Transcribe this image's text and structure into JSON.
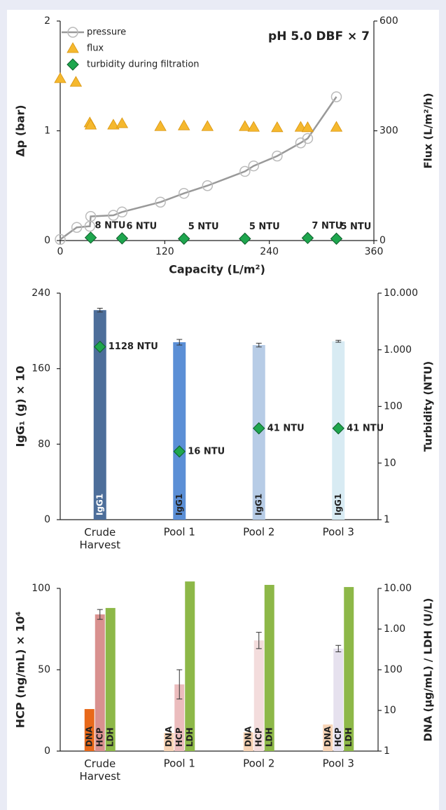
{
  "chart_data": [
    {
      "type": "line",
      "annotation": "pH 5.0 DBF × 7",
      "xlabel": "Capacity (L/m²)",
      "ylabel": "Δp (bar)",
      "y2label": "Flux (L/m²/h)",
      "xlim": [
        0,
        360
      ],
      "xticks": [
        0,
        120,
        240,
        360
      ],
      "ylim": [
        0,
        2
      ],
      "yticks": [
        0,
        1,
        2
      ],
      "y2lim": [
        0,
        600
      ],
      "y2ticks": [
        0,
        300,
        600
      ],
      "legend": "upper left",
      "series": [
        {
          "name": "pressure",
          "color": "#999999",
          "line": true,
          "marker": "circle",
          "x": [
            0,
            19,
            34,
            35,
            61,
            71,
            115,
            142,
            169,
            212,
            222,
            249,
            276,
            284,
            317
          ],
          "values": [
            0.01,
            0.12,
            0.13,
            0.22,
            0.23,
            0.26,
            0.35,
            0.43,
            0.5,
            0.63,
            0.68,
            0.77,
            0.89,
            0.93,
            1.31
          ]
        },
        {
          "name": "flux",
          "color": "#f5b82e",
          "marker": "triangle",
          "axis": "y2",
          "x": [
            0,
            18,
            34,
            35,
            61,
            71,
            115,
            142,
            169,
            212,
            222,
            249,
            276,
            284,
            317
          ],
          "values": [
            443,
            433,
            322,
            316,
            316,
            320,
            312,
            314,
            312,
            312,
            310,
            309,
            310,
            309,
            310
          ]
        },
        {
          "name": "turbidity during filtration",
          "color": "#1ea64e",
          "marker": "diamond",
          "axis": "y2",
          "x": [
            35,
            71,
            142,
            212,
            284,
            317
          ],
          "values": [
            8,
            6,
            5,
            5,
            7,
            5
          ],
          "value_labels": [
            "8 NTU",
            "6 NTU",
            "5 NTU",
            "5 NTU",
            "7 NTU",
            "5 NTU"
          ]
        }
      ]
    },
    {
      "type": "bar",
      "ylabel": "IgG₁ (g) × 10",
      "y2label": "Turbidity (NTU)",
      "categories": [
        "Crude Harvest",
        "Pool 1",
        "Pool 2",
        "Pool 3"
      ],
      "ylim": [
        0,
        240
      ],
      "yticks": [
        0,
        80,
        160,
        240
      ],
      "y2lim": [
        1,
        10000
      ],
      "y2scale": "log",
      "y2ticks": [
        1,
        10,
        100,
        {
          "value": 1000,
          "label": "1.000"
        },
        {
          "value": 10000,
          "label": "10.000"
        }
      ],
      "series": [
        {
          "name": "IgG1",
          "colors": [
            "#4d6e9a",
            "#5b8fd6",
            "#b7cce6",
            "#d8ebf3"
          ],
          "values": [
            222,
            188,
            185,
            189
          ],
          "errors": [
            2,
            3,
            2,
            1
          ]
        },
        {
          "color": "#1ea64e",
          "marker": "diamond",
          "axis": "y2",
          "values": [
            1128,
            16,
            41,
            41
          ],
          "value_labels": [
            "1128 NTU",
            "16 NTU",
            "41 NTU",
            "41 NTU"
          ]
        }
      ]
    },
    {
      "type": "bar",
      "ylabel": "HCP (ng/mL) × 10⁴",
      "y2label": "DNA (µg/mL) / LDH (U/L)",
      "categories": [
        "Crude Harvest",
        "Pool 1",
        "Pool 2",
        "Pool 3"
      ],
      "ylim": [
        0,
        100
      ],
      "yticks": [
        0,
        50,
        100
      ],
      "y2lim": [
        1,
        10000
      ],
      "y2scale": "log",
      "y2ticks": [
        1,
        10,
        100,
        {
          "value": 1000,
          "label": "1.00"
        },
        {
          "value": 10000,
          "label": "10.00"
        }
      ],
      "series": [
        {
          "name": "DNA",
          "axis": "y2",
          "colors": [
            "#e8691a",
            "#f7d3b5",
            "#f7d3b5",
            "#f7d3b5"
          ],
          "values": [
            10.8,
            2.8,
            2.9,
            4.5
          ]
        },
        {
          "name": "HCP",
          "colors": [
            "#d9918f",
            "#ebbcbd",
            "#f3dcdc",
            "#e6e1ee"
          ],
          "values": [
            84,
            41,
            68,
            63
          ],
          "errors": [
            3,
            9,
            5,
            2
          ]
        },
        {
          "name": "LDH",
          "axis": "y2",
          "colors": [
            "#8db848",
            "#8db848",
            "#8db848",
            "#8db848"
          ],
          "values": [
            3300,
            14800,
            12200,
            10800
          ]
        }
      ]
    }
  ]
}
